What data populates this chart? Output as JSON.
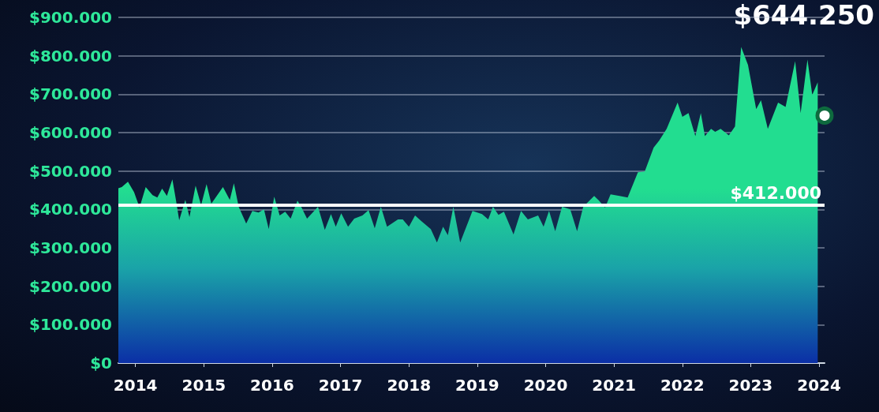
{
  "chart_data": {
    "type": "area",
    "x": [
      2013.75,
      2013.8,
      2013.89,
      2013.98,
      2014.06,
      2014.15,
      2014.25,
      2014.32,
      2014.39,
      2014.46,
      2014.54,
      2014.59,
      2014.64,
      2014.73,
      2014.79,
      2014.88,
      2014.96,
      2015.04,
      2015.11,
      2015.28,
      2015.38,
      2015.44,
      2015.51,
      2015.62,
      2015.71,
      2015.8,
      2015.88,
      2015.95,
      2016.03,
      2016.11,
      2016.19,
      2016.27,
      2016.37,
      2016.43,
      2016.51,
      2016.67,
      2016.77,
      2016.86,
      2016.93,
      2017.01,
      2017.11,
      2017.2,
      2017.32,
      2017.41,
      2017.5,
      2017.59,
      2017.68,
      2017.84,
      2017.91,
      2018.0,
      2018.09,
      2018.18,
      2018.32,
      2018.41,
      2018.5,
      2018.57,
      2018.65,
      2018.75,
      2018.84,
      2018.93,
      2019.07,
      2019.16,
      2019.23,
      2019.31,
      2019.39,
      2019.53,
      2019.64,
      2019.74,
      2019.89,
      2019.97,
      2020.05,
      2020.14,
      2020.24,
      2020.36,
      2020.46,
      2020.55,
      2020.71,
      2020.77,
      2020.87,
      2020.95,
      2021.08,
      2021.2,
      2021.35,
      2021.45,
      2021.58,
      2021.66,
      2021.77,
      2021.93,
      2022.0,
      2022.09,
      2022.19,
      2022.27,
      2022.33,
      2022.42,
      2022.48,
      2022.56,
      2022.68,
      2022.77,
      2022.86,
      2022.96,
      2023.08,
      2023.15,
      2023.25,
      2023.4,
      2023.51,
      2023.65,
      2023.73,
      2023.83,
      2023.9,
      2023.98
    ],
    "series": [
      {
        "color": "#22dd90",
        "values": [
          455000,
          458000,
          472000,
          445000,
          405000,
          458000,
          437000,
          431000,
          454000,
          435000,
          478000,
          427000,
          372000,
          425000,
          380000,
          462000,
          411000,
          466000,
          415000,
          458000,
          425000,
          468000,
          407000,
          363000,
          396000,
          392000,
          400000,
          349000,
          433000,
          384000,
          394000,
          376000,
          423000,
          405000,
          376000,
          407000,
          347000,
          388000,
          355000,
          390000,
          355000,
          376000,
          384000,
          398000,
          351000,
          407000,
          355000,
          374000,
          374000,
          355000,
          384000,
          370000,
          349000,
          314000,
          355000,
          333000,
          407000,
          314000,
          355000,
          396000,
          388000,
          374000,
          407000,
          386000,
          394000,
          335000,
          396000,
          374000,
          384000,
          355000,
          396000,
          343000,
          407000,
          400000,
          343000,
          407000,
          435000,
          425000,
          405000,
          439000,
          435000,
          431000,
          497000,
          499000,
          561000,
          579000,
          610000,
          678000,
          641000,
          651000,
          591000,
          651000,
          591000,
          610000,
          602000,
          610000,
          593000,
          616000,
          823000,
          776000,
          661000,
          684000,
          610000,
          678000,
          667000,
          786000,
          651000,
          790000,
          698000,
          731000
        ]
      },
      {
        "type": "scatter",
        "x": [
          2024.08
        ],
        "color": "#ffffff",
        "marker": "circle",
        "values": [
          644250
        ]
      }
    ],
    "xlim": [
      2013.75,
      2024.08
    ],
    "xticks": [
      2014,
      2015,
      2016,
      2017,
      2018,
      2019,
      2020,
      2021,
      2022,
      2023,
      2024
    ],
    "ylim": [
      0,
      900000
    ],
    "yticks": [
      {
        "value": 0,
        "label": "$0"
      },
      {
        "value": 100000,
        "label": "$100.000"
      },
      {
        "value": 200000,
        "label": "$200.000"
      },
      {
        "value": 300000,
        "label": "$300.000"
      },
      {
        "value": 400000,
        "label": "$400.000"
      },
      {
        "value": 500000,
        "label": "$500.000"
      },
      {
        "value": 600000,
        "label": "$600.000"
      },
      {
        "value": 700000,
        "label": "$700.000"
      },
      {
        "value": 800000,
        "label": "$800.000"
      },
      {
        "value": 900000,
        "label": "$900.000"
      }
    ],
    "ref_lines": [
      {
        "axis": "y",
        "value": 412000,
        "label": "$412.000",
        "color": "#ffffff"
      }
    ],
    "annotations": [
      "$644.250"
    ],
    "grid": "y"
  }
}
